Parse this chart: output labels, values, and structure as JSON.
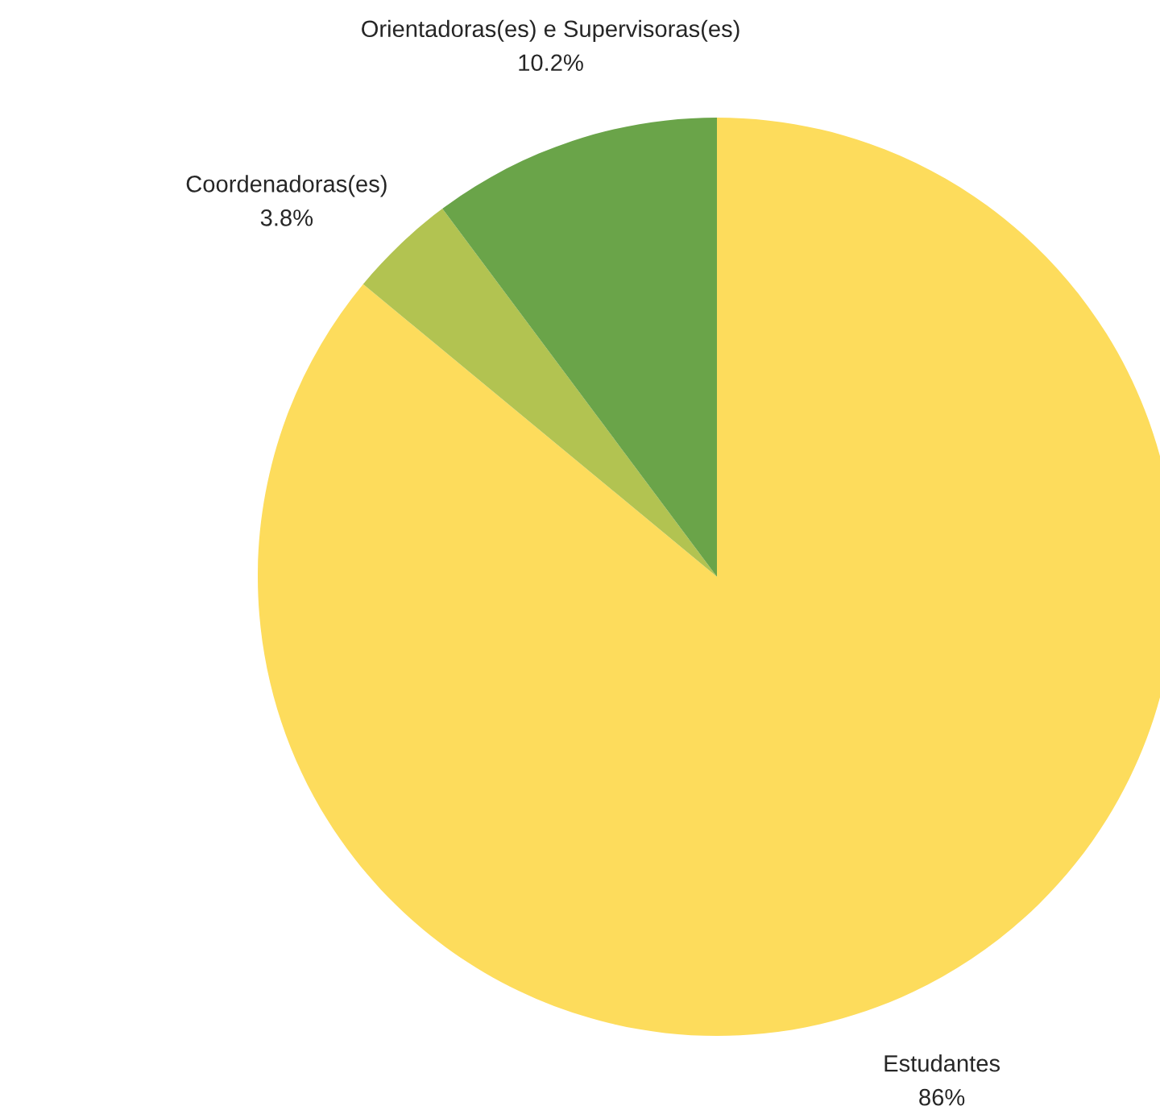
{
  "chart_data": {
    "type": "pie",
    "categories": [
      "Estudantes",
      "Coordenadoras(es)",
      "Orientadoras(es) e Supervisoras(es)"
    ],
    "values": [
      86,
      3.8,
      10.2
    ],
    "value_labels": [
      "86%",
      "3.8%",
      "10.2%"
    ],
    "colors": [
      "#fddc5c",
      "#b2c351",
      "#6aa449"
    ],
    "legend": false
  }
}
